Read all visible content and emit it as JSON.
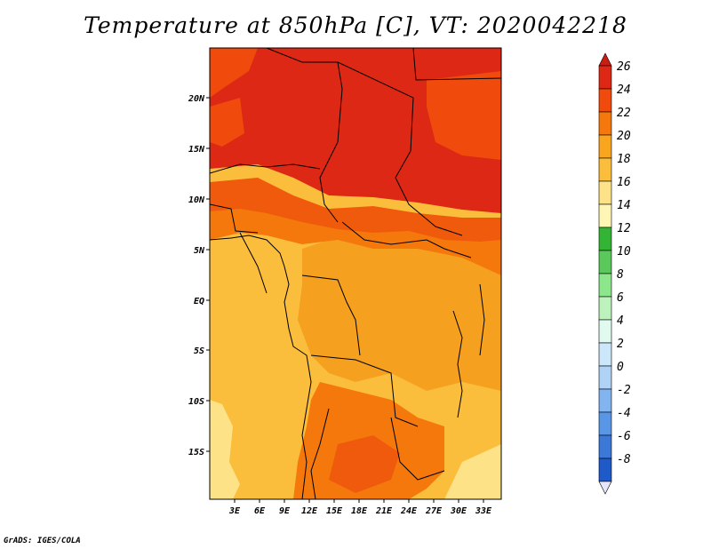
{
  "title": "Temperature at 850hPa [C], VT: 2020042218",
  "credit": "GrADS: IGES/COLA",
  "colors": {
    "t26": "#c81e14",
    "t24": "#dc2814",
    "t22": "#f04a0c",
    "t20": "#f5780c",
    "t18": "#faa51e",
    "t16": "#fbbe3c",
    "t14": "#fee287",
    "land_line": "#000000"
  },
  "axes": {
    "lat_labels": [
      "20N",
      "15N",
      "10N",
      "5N",
      "EQ",
      "5S",
      "10S",
      "15S"
    ],
    "lon_labels": [
      "3E",
      "6E",
      "9E",
      "12E",
      "15E",
      "18E",
      "21E",
      "24E",
      "27E",
      "30E",
      "33E"
    ]
  },
  "colorbar": {
    "labels": [
      "26",
      "24",
      "22",
      "20",
      "18",
      "16",
      "14",
      "12",
      "10",
      "8",
      "6",
      "4",
      "2",
      "0",
      "-2",
      "-4",
      "-6",
      "-8"
    ],
    "colors": [
      "#c81e14",
      "#dc2814",
      "#f04a0c",
      "#f5780c",
      "#faa51e",
      "#fbbe3c",
      "#fee287",
      "#fff6b5",
      "#34b434",
      "#5ac85a",
      "#8ce68c",
      "#bdf2bd",
      "#e0faf0",
      "#cce6fa",
      "#afd2f5",
      "#82b4f0",
      "#5a96e6",
      "#3c78d8",
      "#1e5ac8",
      "#0a32a5",
      "#00148c"
    ]
  }
}
